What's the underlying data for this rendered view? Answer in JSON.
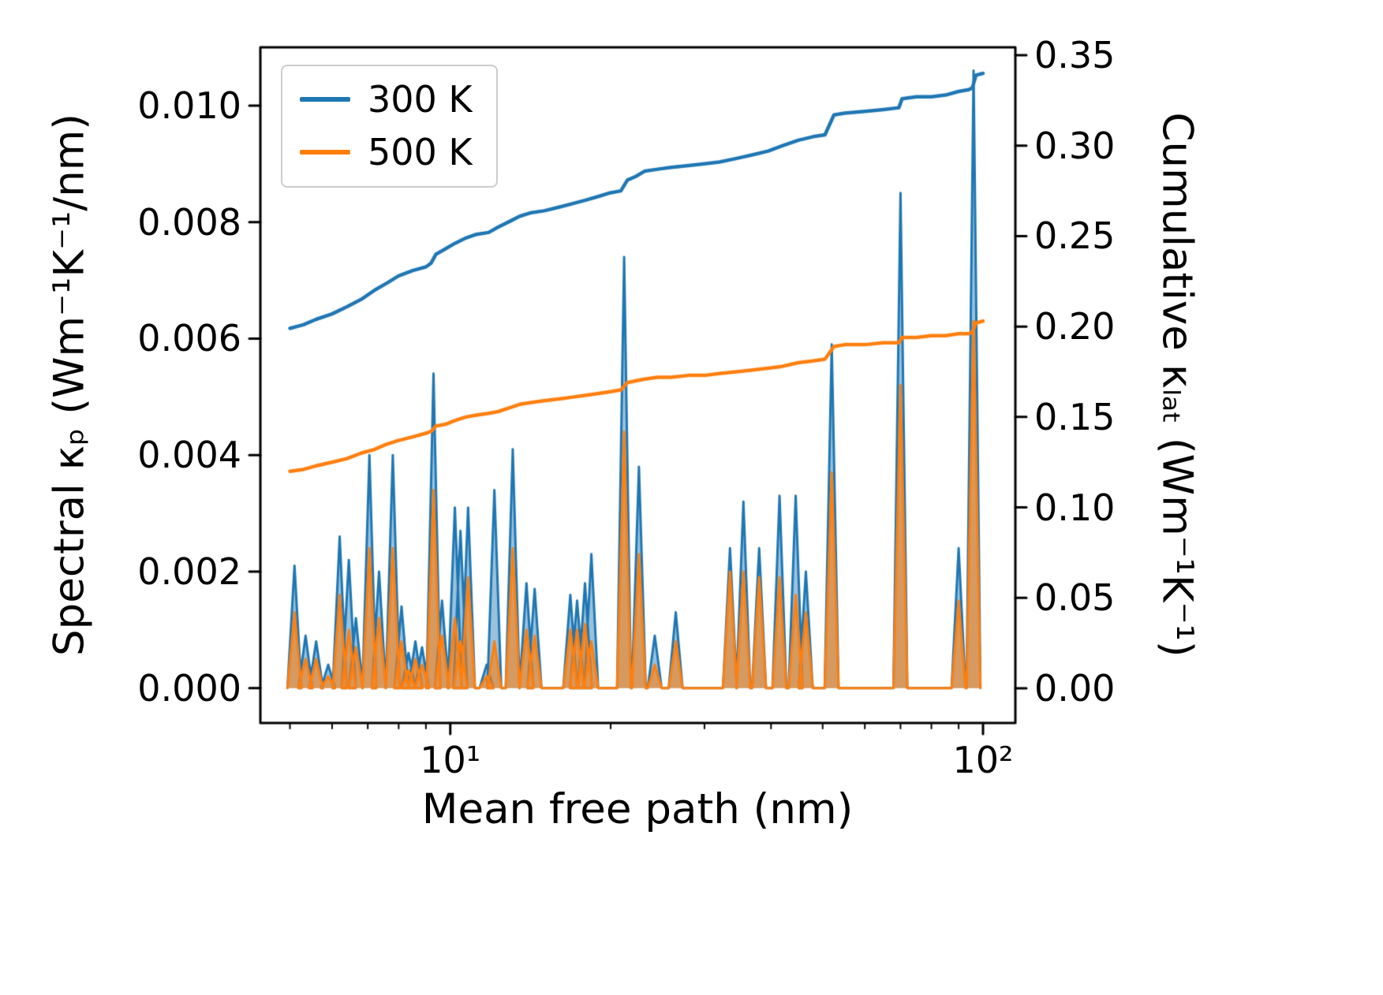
{
  "chart_data": {
    "type": "line",
    "title": "",
    "xlabel": "Mean free path (nm)",
    "ylabel_left": "Spectral κₚ (Wm⁻¹K⁻¹/nm)",
    "ylabel_right": "Cumulative κₗₐₜ (Wm⁻¹K⁻¹)",
    "x_scale": "log",
    "grid": false,
    "xlim": [
      4.4,
      115
    ],
    "ylim_left": [
      -0.0006,
      0.011
    ],
    "ylim_right": [
      -0.0192,
      0.3544
    ],
    "x_ticks": {
      "values": [
        10,
        100
      ],
      "labels": [
        "10¹",
        "10²"
      ],
      "minor": [
        5,
        6,
        7,
        8,
        9,
        20,
        30,
        40,
        50,
        60,
        70,
        80,
        90
      ]
    },
    "y_ticks_left": {
      "values": [
        0.0,
        0.002,
        0.004,
        0.006,
        0.008,
        0.01
      ],
      "labels": [
        "0.000",
        "0.002",
        "0.004",
        "0.006",
        "0.008",
        "0.010"
      ]
    },
    "y_ticks_right": {
      "values": [
        0.0,
        0.05,
        0.1,
        0.15,
        0.2,
        0.25,
        0.3,
        0.35
      ],
      "labels": [
        "0.00",
        "0.05",
        "0.10",
        "0.15",
        "0.20",
        "0.25",
        "0.30",
        "0.35"
      ]
    },
    "legend": {
      "position": "upper left",
      "entries": [
        {
          "label": "300 K",
          "color": "#1f77b4"
        },
        {
          "label": "500 K",
          "color": "#ff7f0e"
        }
      ]
    },
    "colors": {
      "blue_300K": "#1f77b4",
      "orange_500K": "#ff7f0e",
      "blue_fill": "rgba(31,119,180,0.45)",
      "orange_fill": "rgba(255,127,14,0.6)"
    },
    "series": {
      "spectral_peaks": {
        "axis": "left",
        "style": "area-spikes",
        "x": [
          5.1,
          5.35,
          5.6,
          5.9,
          6.2,
          6.45,
          6.65,
          7.05,
          7.35,
          7.8,
          8.1,
          8.35,
          8.6,
          8.85,
          9.3,
          9.65,
          10.2,
          10.45,
          10.8,
          11.7,
          12.1,
          13.1,
          13.9,
          14.4,
          16.8,
          17.3,
          17.9,
          18.4,
          21.2,
          22.6,
          24.2,
          26.5,
          33.5,
          35.5,
          38.0,
          41.5,
          44.5,
          46.5,
          52.0,
          70.0,
          90.0,
          96.0
        ],
        "k300": [
          0.0021,
          0.0009,
          0.0008,
          0.0004,
          0.0026,
          0.0022,
          0.0012,
          0.004,
          0.002,
          0.004,
          0.0014,
          0.0006,
          0.0008,
          0.0007,
          0.0054,
          0.0015,
          0.0031,
          0.0027,
          0.0031,
          0.0004,
          0.0034,
          0.0041,
          0.0018,
          0.0017,
          0.0016,
          0.0015,
          0.0018,
          0.0023,
          0.0074,
          0.0038,
          0.0009,
          0.0013,
          0.0024,
          0.0032,
          0.0024,
          0.0033,
          0.0033,
          0.002,
          0.0059,
          0.0085,
          0.0024,
          0.0106
        ],
        "k500": [
          0.0013,
          0.0005,
          0.0005,
          0.0002,
          0.0016,
          0.001,
          0.0007,
          0.0024,
          0.0012,
          0.0024,
          0.0008,
          0.0003,
          0.0005,
          0.0004,
          0.0034,
          0.0009,
          0.0012,
          0.0008,
          0.0019,
          0.0002,
          0.0008,
          0.0024,
          0.001,
          0.0009,
          0.001,
          0.001,
          0.0011,
          0.0008,
          0.0044,
          0.0023,
          0.0004,
          0.0008,
          0.002,
          0.002,
          0.0019,
          0.0019,
          0.0016,
          0.0013,
          0.0037,
          0.0052,
          0.0015,
          0.0063
        ]
      },
      "cumulative_300K": {
        "axis": "right",
        "style": "line",
        "color": "#1f77b4",
        "x": [
          5.0,
          5.3,
          5.6,
          6.0,
          6.4,
          6.8,
          7.2,
          7.6,
          8.0,
          8.5,
          9.0,
          9.2,
          9.4,
          9.8,
          10.2,
          10.7,
          11.2,
          11.8,
          12.3,
          12.9,
          13.5,
          14.2,
          15.0,
          16.0,
          17.0,
          18.0,
          19.0,
          20.0,
          20.9,
          21.5,
          22.3,
          23.2,
          24.5,
          26.0,
          28.0,
          30.0,
          32.0,
          34.5,
          37.0,
          39.5,
          42.0,
          45.0,
          48.0,
          50.5,
          52.5,
          55.0,
          60.0,
          65.0,
          69.5,
          70.5,
          75.0,
          80.0,
          85.0,
          90.0,
          94.0,
          95.5,
          97.0,
          100.0
        ],
        "y": [
          0.199,
          0.201,
          0.204,
          0.207,
          0.211,
          0.215,
          0.22,
          0.224,
          0.228,
          0.231,
          0.233,
          0.235,
          0.24,
          0.243,
          0.246,
          0.249,
          0.251,
          0.252,
          0.255,
          0.258,
          0.261,
          0.263,
          0.264,
          0.266,
          0.268,
          0.27,
          0.272,
          0.274,
          0.275,
          0.281,
          0.283,
          0.286,
          0.287,
          0.288,
          0.289,
          0.29,
          0.291,
          0.293,
          0.295,
          0.297,
          0.3,
          0.303,
          0.305,
          0.306,
          0.317,
          0.318,
          0.319,
          0.32,
          0.321,
          0.326,
          0.327,
          0.327,
          0.328,
          0.33,
          0.331,
          0.332,
          0.339,
          0.34
        ]
      },
      "cumulative_500K": {
        "axis": "right",
        "style": "line",
        "color": "#ff7f0e",
        "x": [
          5.0,
          5.3,
          5.6,
          6.0,
          6.4,
          6.8,
          7.2,
          7.6,
          8.0,
          8.5,
          9.0,
          9.2,
          9.4,
          9.8,
          10.2,
          10.7,
          11.2,
          11.8,
          12.3,
          12.9,
          13.5,
          14.2,
          15.0,
          16.0,
          17.0,
          18.0,
          19.0,
          20.0,
          20.9,
          21.5,
          22.3,
          23.2,
          24.5,
          26.0,
          28.0,
          30.0,
          32.0,
          34.5,
          37.0,
          39.5,
          42.0,
          45.0,
          48.0,
          50.5,
          52.5,
          55.0,
          60.0,
          65.0,
          69.5,
          70.5,
          75.0,
          80.0,
          85.0,
          90.0,
          94.0,
          95.5,
          97.0,
          100.0
        ],
        "y": [
          0.12,
          0.121,
          0.123,
          0.125,
          0.127,
          0.13,
          0.132,
          0.135,
          0.137,
          0.139,
          0.141,
          0.142,
          0.145,
          0.146,
          0.148,
          0.15,
          0.151,
          0.152,
          0.153,
          0.155,
          0.157,
          0.158,
          0.159,
          0.16,
          0.161,
          0.162,
          0.163,
          0.164,
          0.165,
          0.169,
          0.17,
          0.171,
          0.172,
          0.172,
          0.173,
          0.173,
          0.174,
          0.175,
          0.176,
          0.177,
          0.178,
          0.18,
          0.181,
          0.182,
          0.189,
          0.19,
          0.19,
          0.191,
          0.191,
          0.194,
          0.194,
          0.195,
          0.195,
          0.196,
          0.196,
          0.197,
          0.202,
          0.203
        ]
      }
    }
  }
}
